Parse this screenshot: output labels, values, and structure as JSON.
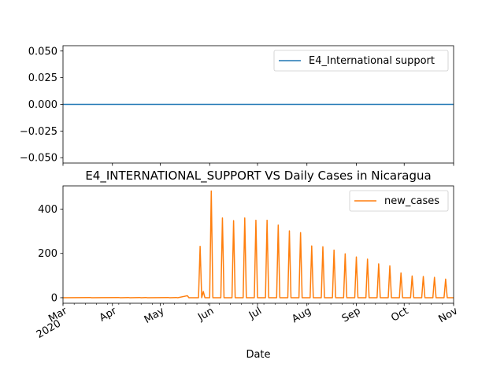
{
  "chart_data": [
    {
      "type": "line",
      "series": [
        {
          "name": "E4_International support",
          "color": "#1f77b4",
          "values": [
            0,
            0
          ]
        }
      ],
      "x": [
        "2020-03-01",
        "2020-11-01"
      ],
      "yticks": [
        "0.050",
        "0.025",
        "0.000",
        "−0.025",
        "−0.050"
      ],
      "ytick_values": [
        0.05,
        0.025,
        0,
        -0.025,
        -0.05
      ],
      "ylim": [
        -0.055,
        0.055
      ],
      "legend": "top-right",
      "grid": false
    },
    {
      "type": "line",
      "title": "E4_INTERNATIONAL_SUPPORT VS Daily Cases in Nicaragua",
      "xlabel": "Date",
      "xticks": [
        {
          "label": "Mar",
          "sub": "2020",
          "date": "2020-03-01"
        },
        {
          "label": "Apr",
          "sub": "",
          "date": "2020-04-01"
        },
        {
          "label": "May",
          "sub": "",
          "date": "2020-05-01"
        },
        {
          "label": "Jun",
          "sub": "",
          "date": "2020-06-01"
        },
        {
          "label": "Jul",
          "sub": "",
          "date": "2020-07-01"
        },
        {
          "label": "Aug",
          "sub": "",
          "date": "2020-08-01"
        },
        {
          "label": "Sep",
          "sub": "",
          "date": "2020-09-01"
        },
        {
          "label": "Oct",
          "sub": "",
          "date": "2020-10-01"
        },
        {
          "label": "Nov",
          "sub": "",
          "date": "2020-11-01"
        }
      ],
      "yticks": [
        "0",
        "200",
        "400"
      ],
      "ytick_values": [
        0,
        200,
        400
      ],
      "ylim": [
        -25,
        505
      ],
      "xlim": [
        "2020-03-01",
        "2020-11-01"
      ],
      "legend": "top-right",
      "grid": false,
      "series": [
        {
          "name": "new_cases",
          "color": "#ff7f0e",
          "points": [
            [
              "2020-03-01",
              0
            ],
            [
              "2020-03-18",
              1
            ],
            [
              "2020-03-19",
              0
            ],
            [
              "2020-04-05",
              1
            ],
            [
              "2020-04-06",
              0
            ],
            [
              "2020-04-11",
              1
            ],
            [
              "2020-04-12",
              0
            ],
            [
              "2020-04-18",
              1
            ],
            [
              "2020-04-19",
              0
            ],
            [
              "2020-04-22",
              1
            ],
            [
              "2020-04-23",
              0
            ],
            [
              "2020-05-06",
              1
            ],
            [
              "2020-05-07",
              0
            ],
            [
              "2020-05-11",
              1
            ],
            [
              "2020-05-12",
              0
            ],
            [
              "2020-05-18",
              9
            ],
            [
              "2020-05-19",
              0
            ],
            [
              "2020-05-25",
              0
            ],
            [
              "2020-05-26",
              232
            ],
            [
              "2020-05-27",
              0
            ],
            [
              "2020-05-28",
              28
            ],
            [
              "2020-05-29",
              0
            ],
            [
              "2020-06-01",
              0
            ],
            [
              "2020-06-02",
              482
            ],
            [
              "2020-06-03",
              0
            ],
            [
              "2020-06-08",
              0
            ],
            [
              "2020-06-09",
              360
            ],
            [
              "2020-06-10",
              0
            ],
            [
              "2020-06-15",
              0
            ],
            [
              "2020-06-16",
              348
            ],
            [
              "2020-06-17",
              0
            ],
            [
              "2020-06-22",
              0
            ],
            [
              "2020-06-23",
              360
            ],
            [
              "2020-06-24",
              0
            ],
            [
              "2020-06-29",
              0
            ],
            [
              "2020-06-30",
              350
            ],
            [
              "2020-07-01",
              0
            ],
            [
              "2020-07-06",
              0
            ],
            [
              "2020-07-07",
              350
            ],
            [
              "2020-07-08",
              0
            ],
            [
              "2020-07-13",
              0
            ],
            [
              "2020-07-14",
              328
            ],
            [
              "2020-07-15",
              0
            ],
            [
              "2020-07-20",
              0
            ],
            [
              "2020-07-21",
              302
            ],
            [
              "2020-07-22",
              0
            ],
            [
              "2020-07-27",
              0
            ],
            [
              "2020-07-28",
              294
            ],
            [
              "2020-07-29",
              0
            ],
            [
              "2020-08-03",
              0
            ],
            [
              "2020-08-04",
              234
            ],
            [
              "2020-08-05",
              0
            ],
            [
              "2020-08-10",
              0
            ],
            [
              "2020-08-11",
              230
            ],
            [
              "2020-08-12",
              0
            ],
            [
              "2020-08-17",
              0
            ],
            [
              "2020-08-18",
              215
            ],
            [
              "2020-08-19",
              0
            ],
            [
              "2020-08-24",
              0
            ],
            [
              "2020-08-25",
              198
            ],
            [
              "2020-08-26",
              0
            ],
            [
              "2020-08-31",
              0
            ],
            [
              "2020-09-01",
              184
            ],
            [
              "2020-09-02",
              0
            ],
            [
              "2020-09-07",
              0
            ],
            [
              "2020-09-08",
              174
            ],
            [
              "2020-09-09",
              0
            ],
            [
              "2020-09-14",
              0
            ],
            [
              "2020-09-15",
              153
            ],
            [
              "2020-09-16",
              0
            ],
            [
              "2020-09-21",
              0
            ],
            [
              "2020-09-22",
              144
            ],
            [
              "2020-09-23",
              0
            ],
            [
              "2020-09-28",
              0
            ],
            [
              "2020-09-29",
              112
            ],
            [
              "2020-09-30",
              0
            ],
            [
              "2020-10-05",
              0
            ],
            [
              "2020-10-06",
              98
            ],
            [
              "2020-10-07",
              0
            ],
            [
              "2020-10-12",
              0
            ],
            [
              "2020-10-13",
              96
            ],
            [
              "2020-10-14",
              0
            ],
            [
              "2020-10-19",
              0
            ],
            [
              "2020-10-20",
              92
            ],
            [
              "2020-10-21",
              0
            ],
            [
              "2020-10-26",
              0
            ],
            [
              "2020-10-27",
              84
            ],
            [
              "2020-10-28",
              0
            ],
            [
              "2020-11-02",
              0
            ],
            [
              "2020-11-03",
              82
            ],
            [
              "2020-11-04",
              0
            ]
          ]
        }
      ]
    }
  ]
}
